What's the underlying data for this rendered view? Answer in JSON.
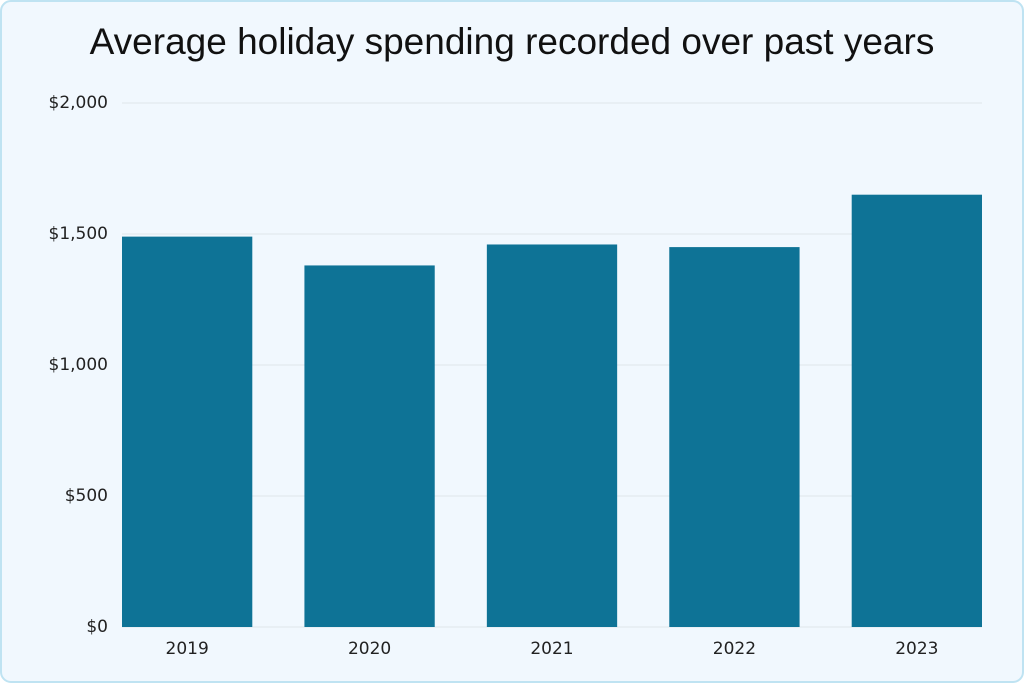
{
  "chart_data": {
    "type": "bar",
    "title": "Average holiday spending recorded over past years",
    "categories": [
      "2019",
      "2020",
      "2021",
      "2022",
      "2023"
    ],
    "values": [
      1490,
      1380,
      1460,
      1450,
      1650
    ],
    "color": "#0e7396",
    "ylim": [
      0,
      2000
    ],
    "yticks": [
      {
        "value": 0,
        "label": "$0"
      },
      {
        "value": 500,
        "label": "$500"
      },
      {
        "value": 1000,
        "label": "$1,000"
      },
      {
        "value": 1500,
        "label": "$1,500"
      },
      {
        "value": 2000,
        "label": "$2,000"
      }
    ],
    "grid": true
  }
}
